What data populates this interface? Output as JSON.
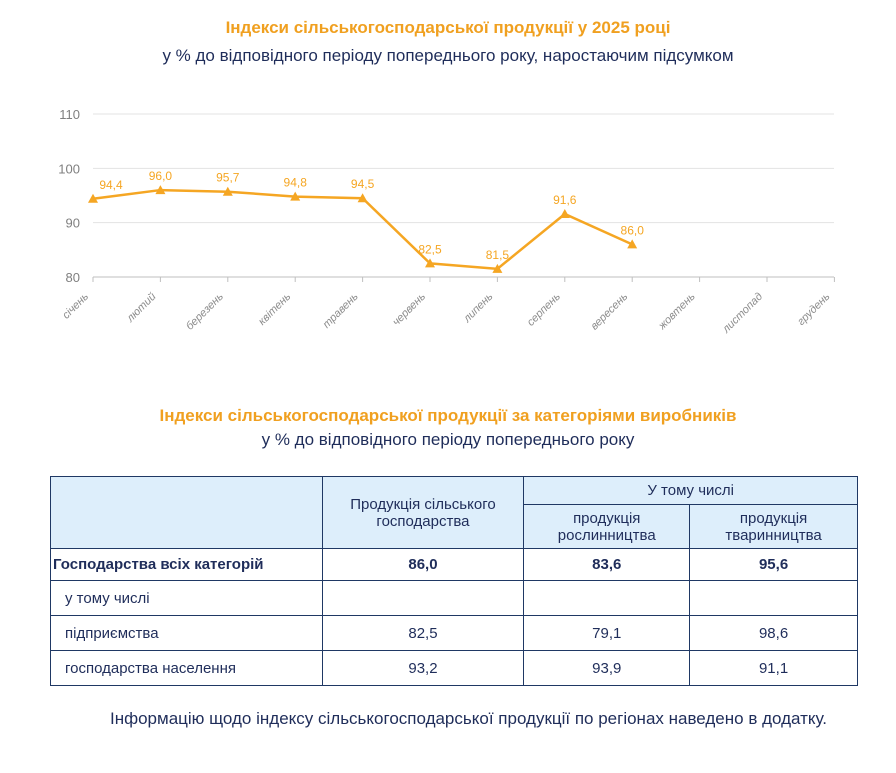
{
  "chart_data": {
    "type": "line",
    "title": "Індекси сільськогосподарської продукції у 2025 році",
    "subtitle": "у % до відповідного періоду попереднього року, наростаючим підсумком",
    "categories": [
      "січень",
      "лютий",
      "березень",
      "квітень",
      "травень",
      "червень",
      "липень",
      "серпень",
      "вересень",
      "жовтень",
      "листопад",
      "грудень"
    ],
    "values": [
      94.4,
      96.0,
      95.7,
      94.8,
      94.5,
      82.5,
      81.5,
      91.6,
      86.0,
      null,
      null,
      null
    ],
    "labels": [
      "94,4",
      "96,0",
      "95,7",
      "94,8",
      "94,5",
      "82,5",
      "81,5",
      "91,6",
      "86,0"
    ],
    "yticks": [
      "80",
      "90",
      "100",
      "110"
    ],
    "ylim": [
      80,
      110
    ],
    "color": "#F5A623",
    "grid": true
  },
  "table": {
    "title": "Індекси сільськогосподарської продукції за категоріями виробників",
    "subtitle": "у % до відповідного періоду попереднього року",
    "col1": "Продукція сільського господарства",
    "group": "У тому числі",
    "col2": "продукція рослинництва",
    "col3": "продукція тваринництва",
    "rows": [
      {
        "label": "Господарства всіх категорій",
        "v": [
          "86,0",
          "83,6",
          "95,6"
        ]
      },
      {
        "label": "у тому числі",
        "v": [
          "",
          "",
          ""
        ]
      },
      {
        "label": "підприємства",
        "v": [
          "82,5",
          "79,1",
          "98,6"
        ]
      },
      {
        "label": "господарства населення",
        "v": [
          "93,2",
          "93,9",
          "91,1"
        ]
      }
    ]
  },
  "note": "Інформацію щодо індексу сільськогосподарської продукції по регіонах наведено в додатку."
}
